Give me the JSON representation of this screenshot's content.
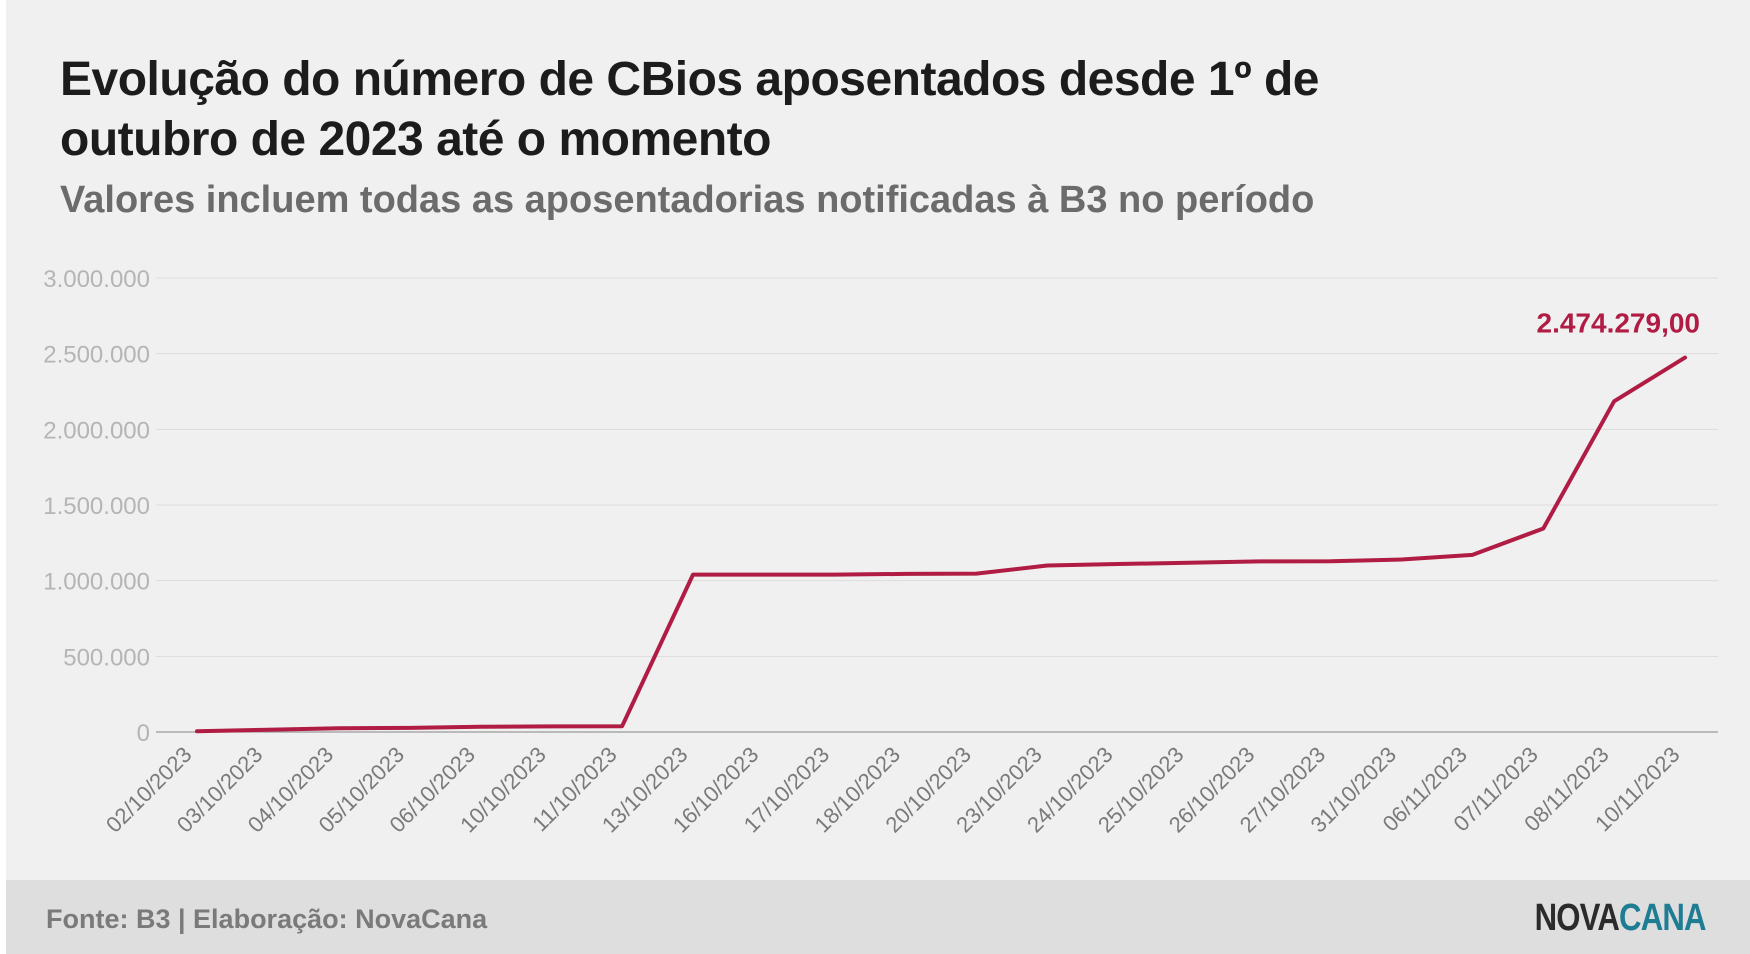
{
  "title": "Evolução do número de CBios aposentados desde 1º de outubro de 2023 até o momento",
  "subtitle": "Valores incluem todas as aposentadorias notificadas à B3 no período",
  "footer": {
    "source": "Fonte: B3 | Elaboração: NovaCana",
    "logo": {
      "text": "NOVACANA",
      "part1": "NOVA",
      "part2": "CANA"
    }
  },
  "colors": {
    "line": "#b01c43",
    "background": "#f0f0f0",
    "footer": "#dedede",
    "logo_accent": "#1f7d93"
  },
  "chart_data": {
    "type": "line",
    "title": "Evolução do número de CBios aposentados desde 1º de outubro de 2023 até o momento",
    "subtitle": "Valores incluem todas as aposentadorias notificadas à B3 no período",
    "xlabel": "",
    "ylabel": "",
    "categories": [
      "02/10/2023",
      "03/10/2023",
      "04/10/2023",
      "05/10/2023",
      "06/10/2023",
      "10/10/2023",
      "11/10/2023",
      "13/10/2023",
      "16/10/2023",
      "17/10/2023",
      "18/10/2023",
      "20/10/2023",
      "23/10/2023",
      "24/10/2023",
      "25/10/2023",
      "26/10/2023",
      "27/10/2023",
      "31/10/2023",
      "06/11/2023",
      "07/11/2023",
      "08/11/2023",
      "10/11/2023"
    ],
    "series": [
      {
        "values": [
          5000,
          15000,
          25000,
          27000,
          35000,
          37000,
          38000,
          1040000,
          1040000,
          1040000,
          1045000,
          1047000,
          1100000,
          1110000,
          1118000,
          1127000,
          1128000,
          1140000,
          1170000,
          1345000,
          2185000,
          2474279
        ]
      }
    ],
    "ylim": [
      0,
      3000000
    ],
    "yticks": [
      0,
      500000,
      1000000,
      1500000,
      2000000,
      2500000,
      3000000
    ],
    "ytick_labels": [
      "0",
      "500.000",
      "1.000.000",
      "1.500.000",
      "2.000.000",
      "2.500.000",
      "3.000.000"
    ],
    "grid": true,
    "legend": "none",
    "annotation": {
      "label": "2.474.279,00",
      "point": "last"
    }
  }
}
